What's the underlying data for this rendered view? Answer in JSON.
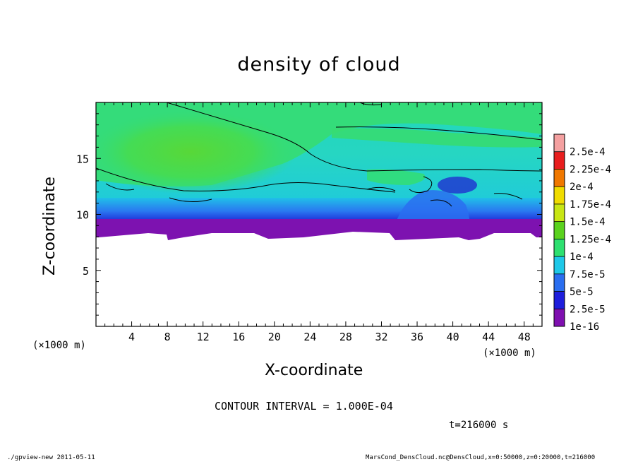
{
  "chart_data": {
    "type": "heatmap",
    "title": "density of cloud",
    "xlabel": "X-coordinate",
    "ylabel": "Z-coordinate",
    "x_unit_label": "(×1000 m)",
    "xlim": [
      0,
      50
    ],
    "ylim": [
      0,
      20
    ],
    "x_ticks": [
      "4",
      "8",
      "12",
      "16",
      "20",
      "24",
      "28",
      "32",
      "36",
      "40",
      "44",
      "48"
    ],
    "y_ticks": [
      "5",
      "10",
      "15"
    ],
    "colorbar_labels": [
      "1e-16",
      "2.5e-5",
      "5e-5",
      "7.5e-5",
      "1e-4",
      "1.25e-4",
      "1.5e-4",
      "1.75e-4",
      "2e-4",
      "2.25e-4",
      "2.5e-4"
    ],
    "colorbar_colors": [
      "#7f10b0",
      "#1e1edc",
      "#2a6ef0",
      "#1ec8e8",
      "#2ee070",
      "#5ad21e",
      "#c8e614",
      "#f0dc00",
      "#f07800",
      "#e81e1e",
      "#f4a0a0"
    ],
    "contour_interval_text": "CONTOUR INTERVAL = 1.000E-04",
    "time_text": "t=216000 s"
  },
  "footer": {
    "program": "./gpview-new  2011-05-11",
    "source": "MarsCond_DensCloud.nc@DensCloud,x=0:50000,z=0:20000,t=216000"
  }
}
